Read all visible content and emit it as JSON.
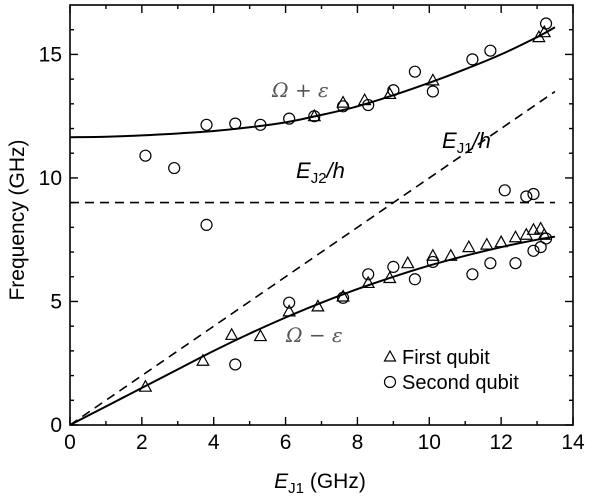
{
  "chart_data": {
    "type": "scatter",
    "xlabel": "E_J1 (GHz)",
    "ylabel": "Frequency (GHz)",
    "xlim": [
      0,
      14
    ],
    "ylim": [
      0,
      17
    ],
    "x_ticks": [
      0,
      2,
      4,
      6,
      8,
      10,
      12,
      14
    ],
    "y_ticks": [
      0,
      5,
      10,
      15
    ],
    "grid": false,
    "legend_position": "bottom-right",
    "labels": {
      "xlabel_main": "E",
      "xlabel_sub": "J1",
      "xlabel_unit": " (GHz)",
      "ylabel": "Frequency (GHz)"
    },
    "annotations": {
      "upper_branch": "Ω + ε",
      "lower_branch": "Ω − ε",
      "ej1_main": "E",
      "ej1_sub": "J1",
      "ej1_suffix": "/h",
      "ej2_main": "E",
      "ej2_sub": "J2",
      "ej2_suffix": "/h"
    },
    "lines": {
      "upper_curve": [
        [
          0,
          11.65
        ],
        [
          1,
          11.67
        ],
        [
          2,
          11.72
        ],
        [
          3,
          11.8
        ],
        [
          4,
          11.9
        ],
        [
          5,
          12.05
        ],
        [
          6,
          12.25
        ],
        [
          7,
          12.55
        ],
        [
          8,
          12.9
        ],
        [
          9,
          13.35
        ],
        [
          10,
          13.85
        ],
        [
          11,
          14.4
        ],
        [
          12,
          15.0
        ],
        [
          13,
          15.7
        ],
        [
          13.5,
          16.1
        ]
      ],
      "lower_curve": [
        [
          0,
          0
        ],
        [
          1,
          0.75
        ],
        [
          2,
          1.5
        ],
        [
          3,
          2.25
        ],
        [
          4,
          3.0
        ],
        [
          5,
          3.7
        ],
        [
          6,
          4.35
        ],
        [
          7,
          4.95
        ],
        [
          8,
          5.5
        ],
        [
          9,
          6.0
        ],
        [
          10,
          6.45
        ],
        [
          11,
          6.85
        ],
        [
          12,
          7.2
        ],
        [
          13,
          7.5
        ],
        [
          13.5,
          7.62
        ]
      ],
      "ej1_line": [
        [
          0,
          0
        ],
        [
          13.5,
          13.5
        ]
      ],
      "ej2_line": [
        [
          0,
          9.0
        ],
        [
          13.5,
          9.0
        ]
      ]
    },
    "series": [
      {
        "name": "First qubit",
        "marker": "triangle",
        "points": [
          [
            2.1,
            1.55
          ],
          [
            3.7,
            2.6
          ],
          [
            4.5,
            3.65
          ],
          [
            5.3,
            3.6
          ],
          [
            6.1,
            4.6
          ],
          [
            6.9,
            4.8
          ],
          [
            7.6,
            5.2
          ],
          [
            8.3,
            5.75
          ],
          [
            8.9,
            5.95
          ],
          [
            9.4,
            6.55
          ],
          [
            10.1,
            6.85
          ],
          [
            10.6,
            6.85
          ],
          [
            11.1,
            7.2
          ],
          [
            11.6,
            7.3
          ],
          [
            12.0,
            7.4
          ],
          [
            12.4,
            7.6
          ],
          [
            12.7,
            7.7
          ],
          [
            12.9,
            7.9
          ],
          [
            13.1,
            7.95
          ],
          [
            13.2,
            7.7
          ],
          [
            6.8,
            12.5
          ],
          [
            7.6,
            13.05
          ],
          [
            8.2,
            13.15
          ],
          [
            8.9,
            13.4
          ],
          [
            10.1,
            13.95
          ],
          [
            13.05,
            15.7
          ],
          [
            13.2,
            15.9
          ]
        ]
      },
      {
        "name": "Second qubit",
        "marker": "circle",
        "points": [
          [
            2.1,
            10.9
          ],
          [
            2.9,
            10.4
          ],
          [
            3.8,
            8.1
          ],
          [
            3.8,
            12.15
          ],
          [
            4.6,
            2.45
          ],
          [
            4.6,
            12.2
          ],
          [
            5.3,
            12.15
          ],
          [
            6.1,
            4.95
          ],
          [
            6.1,
            12.4
          ],
          [
            6.8,
            12.5
          ],
          [
            7.6,
            5.15
          ],
          [
            7.6,
            12.9
          ],
          [
            8.3,
            6.1
          ],
          [
            8.3,
            12.95
          ],
          [
            9.0,
            6.4
          ],
          [
            9.0,
            13.55
          ],
          [
            9.6,
            5.9
          ],
          [
            9.6,
            14.3
          ],
          [
            10.1,
            6.6
          ],
          [
            10.1,
            13.5
          ],
          [
            11.2,
            6.1
          ],
          [
            11.2,
            14.8
          ],
          [
            11.7,
            6.55
          ],
          [
            11.7,
            15.15
          ],
          [
            12.1,
            9.5
          ],
          [
            12.4,
            6.55
          ],
          [
            12.7,
            9.25
          ],
          [
            12.9,
            9.35
          ],
          [
            12.9,
            7.05
          ],
          [
            13.1,
            7.2
          ],
          [
            13.25,
            7.55
          ],
          [
            13.25,
            16.25
          ]
        ]
      }
    ]
  }
}
